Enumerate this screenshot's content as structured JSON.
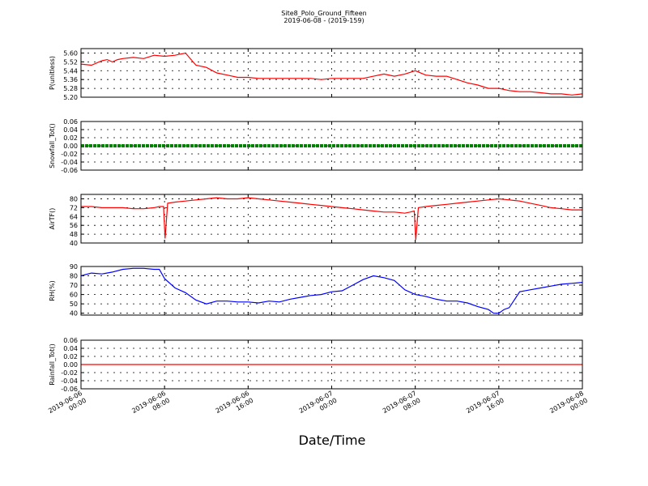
{
  "figure": {
    "title": "Site8_Polo_Ground_Fifteen",
    "subtitle": "2019-06-08 - (2019-159)",
    "xlabel": "Date/Time"
  },
  "x_ticks": [
    [
      "2019-06-06",
      "00:00"
    ],
    [
      "2019-06-06",
      "08:00"
    ],
    [
      "2019-06-06",
      "16:00"
    ],
    [
      "2019-06-07",
      "00:00"
    ],
    [
      "2019-06-07",
      "08:00"
    ],
    [
      "2019-06-07",
      "16:00"
    ],
    [
      "2019-06-08",
      "00:00"
    ]
  ],
  "chart_data": [
    {
      "type": "line",
      "ylabel": "P(unitless)",
      "color": "#ff0000",
      "ylim": [
        5.2,
        5.64
      ],
      "yticks": [
        5.2,
        5.28,
        5.36,
        5.44,
        5.52,
        5.6
      ],
      "grid": true,
      "x_hours": [
        0,
        1,
        2,
        2.5,
        3,
        3.5,
        4,
        5,
        6,
        7,
        8,
        9,
        10,
        11,
        12,
        13,
        14,
        15,
        16,
        17,
        18,
        19,
        20,
        21,
        22,
        23,
        24,
        25,
        26,
        27,
        28,
        29,
        30,
        31,
        32,
        33,
        34,
        35,
        36,
        37,
        38,
        39,
        40,
        41,
        42,
        43,
        44,
        45,
        46,
        47,
        48
      ],
      "values": [
        5.5,
        5.49,
        5.53,
        5.54,
        5.52,
        5.54,
        5.55,
        5.56,
        5.55,
        5.58,
        5.57,
        5.58,
        5.6,
        5.49,
        5.47,
        5.42,
        5.4,
        5.38,
        5.38,
        5.37,
        5.37,
        5.37,
        5.37,
        5.37,
        5.37,
        5.36,
        5.37,
        5.37,
        5.37,
        5.37,
        5.39,
        5.41,
        5.39,
        5.41,
        5.44,
        5.4,
        5.39,
        5.39,
        5.36,
        5.33,
        5.31,
        5.28,
        5.28,
        5.26,
        5.25,
        5.25,
        5.24,
        5.23,
        5.23,
        5.22,
        5.23
      ]
    },
    {
      "type": "line",
      "ylabel": "Snowfall_Tot()",
      "color": "#008000",
      "ylim": [
        -0.06,
        0.06
      ],
      "yticks": [
        -0.06,
        -0.04,
        -0.02,
        0.0,
        0.02,
        0.04,
        0.06
      ],
      "grid": true,
      "x_hours": [
        0,
        48
      ],
      "values": [
        0,
        0
      ]
    },
    {
      "type": "line",
      "ylabel": "AirTF()",
      "color": "#ff0000",
      "ylim": [
        40,
        84
      ],
      "yticks": [
        40,
        48,
        56,
        64,
        72,
        80
      ],
      "grid": true,
      "x_hours": [
        0,
        1,
        2,
        3,
        4,
        5,
        6,
        7,
        7.5,
        7.9,
        8.05,
        8.3,
        9,
        10,
        11,
        12,
        13,
        14,
        15,
        16,
        17,
        18,
        19,
        20,
        21,
        22,
        23,
        24,
        25,
        26,
        27,
        28,
        29,
        30,
        31,
        31.5,
        31.9,
        32.05,
        32.3,
        33,
        34,
        35,
        36,
        37,
        38,
        39,
        40,
        41,
        42,
        43,
        44,
        45,
        46,
        47,
        48
      ],
      "values": [
        73,
        73,
        72,
        72,
        72,
        71,
        71,
        72,
        73,
        73,
        44,
        76,
        77,
        78,
        79,
        80,
        81,
        80,
        80,
        81,
        80,
        79,
        78,
        77,
        76,
        75,
        74,
        73,
        72,
        71,
        70,
        69,
        68,
        68,
        67,
        68,
        69,
        43,
        72,
        73,
        74,
        75,
        76,
        77,
        78,
        79,
        80,
        79,
        78,
        76,
        74,
        72,
        71,
        70,
        70
      ]
    },
    {
      "type": "line",
      "ylabel": "RH(%)",
      "color": "#0000ff",
      "ylim": [
        38,
        90
      ],
      "yticks": [
        40,
        50,
        60,
        70,
        80,
        90
      ],
      "grid": true,
      "x_hours": [
        0,
        1,
        2,
        3,
        4,
        5,
        6,
        7,
        7.5,
        8,
        9,
        10,
        11,
        12,
        13,
        14,
        15,
        16,
        17,
        18,
        19,
        20,
        21,
        22,
        23,
        24,
        25,
        26,
        27,
        28,
        29,
        30,
        31,
        32,
        33,
        34,
        35,
        36,
        37,
        38,
        39,
        39.5,
        40,
        40.5,
        41,
        42,
        43,
        44,
        45,
        46,
        47,
        48
      ],
      "values": [
        80,
        83,
        82,
        84,
        87,
        88,
        88,
        87,
        87,
        77,
        67,
        62,
        54,
        50,
        53,
        53,
        52,
        52,
        51,
        53,
        52,
        55,
        57,
        59,
        60,
        63,
        64,
        70,
        76,
        80,
        78,
        75,
        65,
        60,
        58,
        55,
        53,
        53,
        51,
        47,
        44,
        40,
        40,
        44,
        46,
        63,
        65,
        67,
        69,
        71,
        72,
        73
      ]
    },
    {
      "type": "line",
      "ylabel": "Rainfall_Tot()",
      "color": "#ff0000",
      "ylim": [
        -0.06,
        0.06
      ],
      "yticks": [
        -0.06,
        -0.04,
        -0.02,
        0.0,
        0.02,
        0.04,
        0.06
      ],
      "grid": true,
      "x_hours": [
        0,
        48
      ],
      "values": [
        0,
        0
      ]
    }
  ]
}
